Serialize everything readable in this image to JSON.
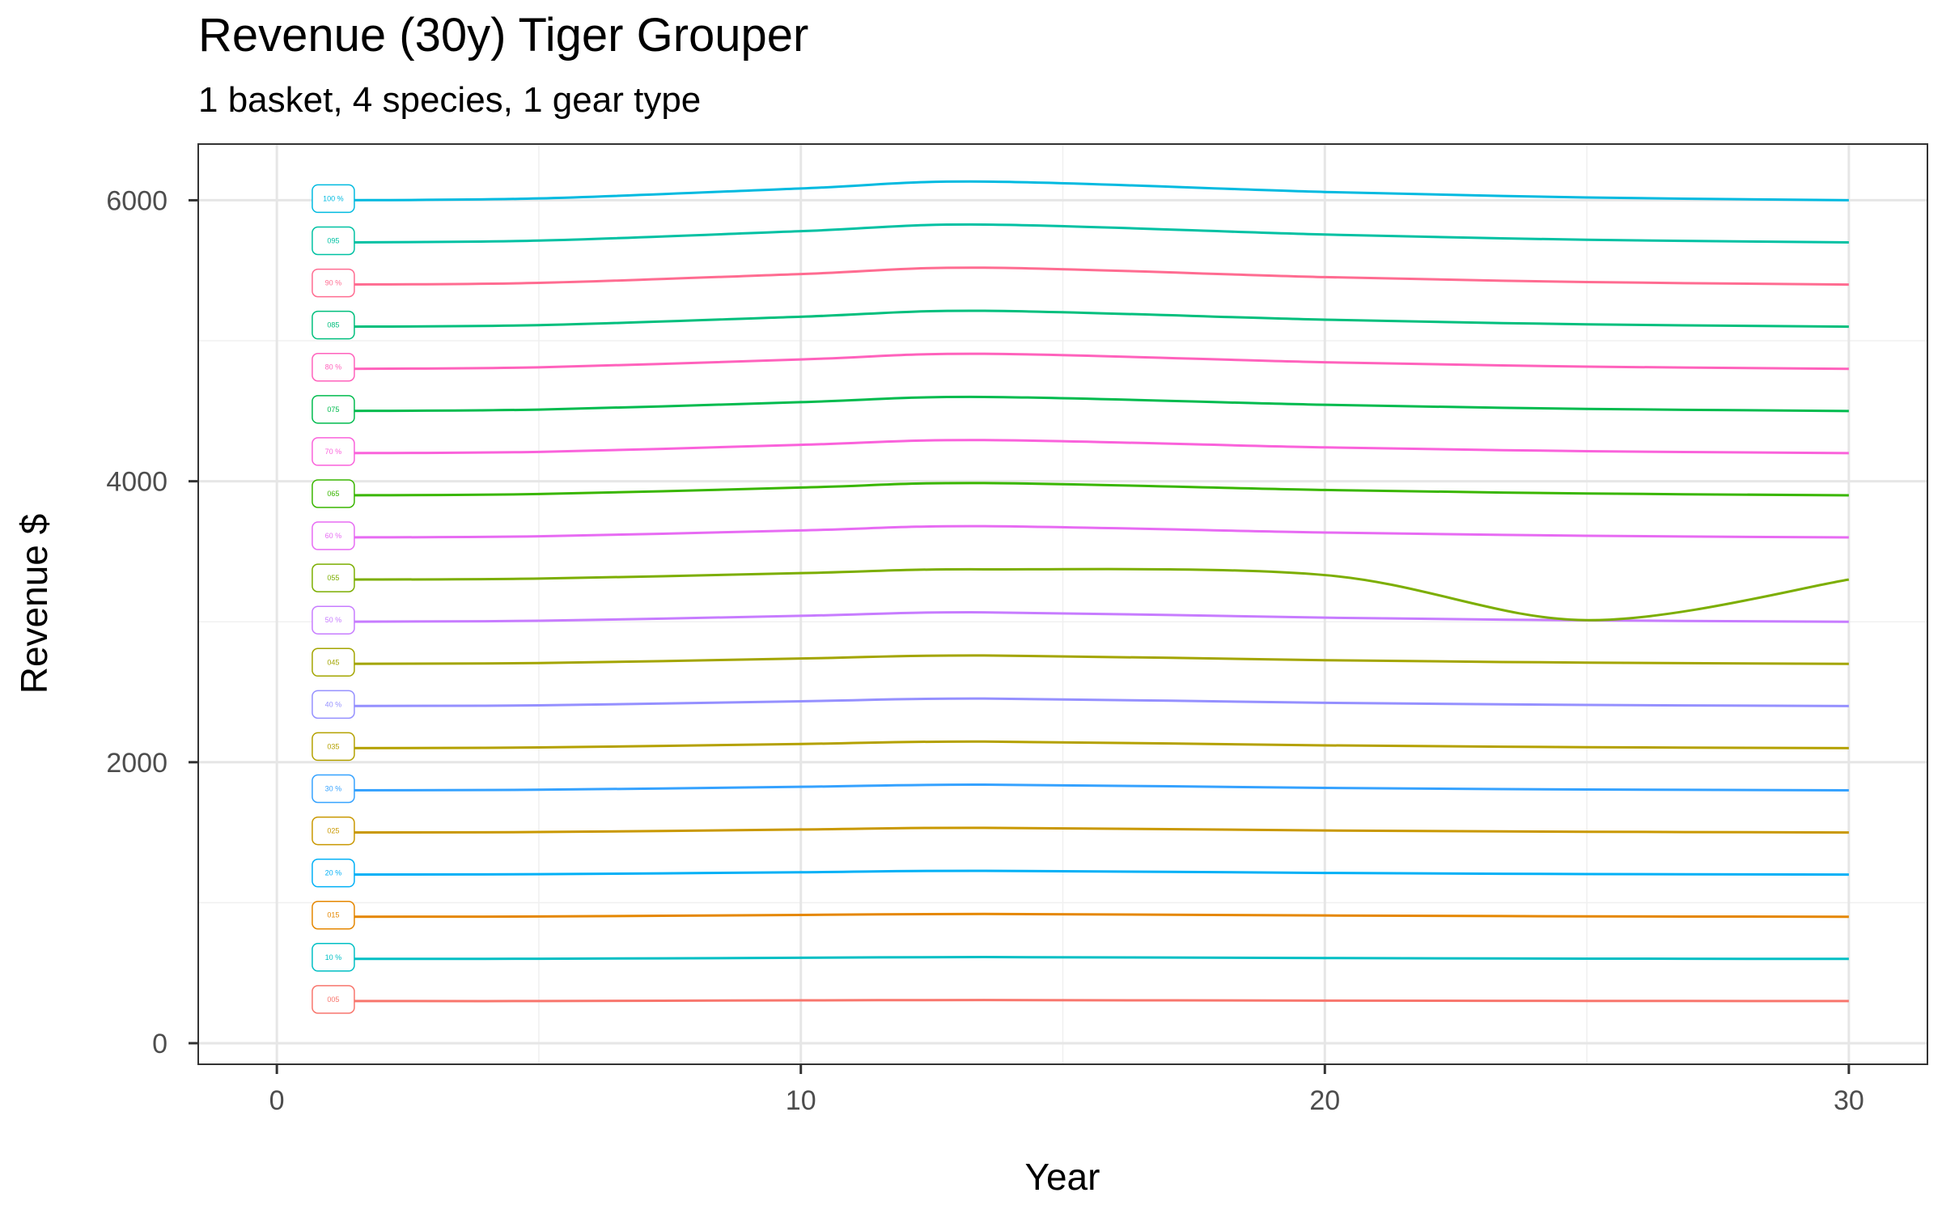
{
  "chart_data": {
    "type": "line",
    "title": "Revenue (30y) Tiger Grouper",
    "subtitle": "1 basket, 4 species, 1 gear type",
    "xlabel": "Year",
    "ylabel": "Revenue $",
    "xlim": [
      -1.5,
      31.5
    ],
    "ylim": [
      -150,
      6400
    ],
    "x_ticks": [
      0,
      10,
      20,
      30
    ],
    "y_ticks": [
      0,
      2000,
      4000,
      6000
    ],
    "x_minor": [
      5,
      15,
      25
    ],
    "y_minor": [
      1000,
      3000,
      5000
    ],
    "grid": true,
    "legend": "none",
    "x": [
      1,
      5,
      10,
      13.5,
      20,
      25,
      30
    ],
    "series": [
      {
        "name": "005",
        "label": "005",
        "color": "#F8766D",
        "values": [
          300,
          300,
          305,
          307,
          303,
          301,
          300
        ]
      },
      {
        "name": "10 %",
        "label": "10 %",
        "color": "#00BFC4",
        "values": [
          600,
          601,
          608,
          613,
          606,
          602,
          600
        ]
      },
      {
        "name": "015",
        "label": "015",
        "color": "#E58700",
        "values": [
          900,
          902,
          913,
          920,
          909,
          903,
          900
        ]
      },
      {
        "name": "20 %",
        "label": "20 %",
        "color": "#00B0F6",
        "values": [
          1200,
          1203,
          1217,
          1227,
          1212,
          1204,
          1200
        ]
      },
      {
        "name": "025",
        "label": "025",
        "color": "#C99800",
        "values": [
          1500,
          1503,
          1521,
          1533,
          1514,
          1505,
          1500
        ]
      },
      {
        "name": "30 %",
        "label": "30 %",
        "color": "#35A2FF",
        "values": [
          1800,
          1804,
          1825,
          1840,
          1817,
          1806,
          1800
        ]
      },
      {
        "name": "035",
        "label": "035",
        "color": "#B4A100",
        "values": [
          2100,
          2105,
          2130,
          2147,
          2120,
          2107,
          2100
        ]
      },
      {
        "name": "40 %",
        "label": "40 %",
        "color": "#9590FF",
        "values": [
          2400,
          2405,
          2434,
          2453,
          2423,
          2408,
          2400
        ]
      },
      {
        "name": "045",
        "label": "045",
        "color": "#A3A500",
        "values": [
          2700,
          2706,
          2738,
          2760,
          2726,
          2709,
          2700
        ]
      },
      {
        "name": "50 %",
        "label": "50 %",
        "color": "#C77CFF",
        "values": [
          3000,
          3007,
          3042,
          3067,
          3029,
          3010,
          3000
        ]
      },
      {
        "name": "055",
        "label": "055",
        "color": "#7CAE00",
        "values": [
          3300,
          3307,
          3346,
          3373,
          3332,
          3011,
          3300
        ]
      },
      {
        "name": "60 %",
        "label": "60 %",
        "color": "#E76BF3",
        "values": [
          3600,
          3608,
          3650,
          3680,
          3635,
          3612,
          3600
        ]
      },
      {
        "name": "065",
        "label": "065",
        "color": "#39B600",
        "values": [
          3900,
          3909,
          3955,
          3987,
          3938,
          3913,
          3900
        ]
      },
      {
        "name": "70 %",
        "label": "70 %",
        "color": "#FA62DB",
        "values": [
          4200,
          4209,
          4259,
          4293,
          4241,
          4214,
          4200
        ]
      },
      {
        "name": "075",
        "label": "075",
        "color": "#00BB4E",
        "values": [
          4500,
          4510,
          4563,
          4600,
          4544,
          4515,
          4500
        ]
      },
      {
        "name": "80 %",
        "label": "80 %",
        "color": "#FF62BC",
        "values": [
          4800,
          4811,
          4867,
          4907,
          4847,
          4816,
          4800
        ]
      },
      {
        "name": "085",
        "label": "085",
        "color": "#00BF7D",
        "values": [
          5100,
          5111,
          5171,
          5213,
          5150,
          5117,
          5100
        ]
      },
      {
        "name": "90 %",
        "label": "90 %",
        "color": "#FF6C91",
        "values": [
          5400,
          5412,
          5475,
          5520,
          5453,
          5418,
          5400
        ]
      },
      {
        "name": "095",
        "label": "095",
        "color": "#00C1A3",
        "values": [
          5700,
          5713,
          5780,
          5827,
          5756,
          5719,
          5700
        ]
      },
      {
        "name": "100 %",
        "label": "100 %",
        "color": "#00BAE0",
        "values": [
          6000,
          6013,
          6084,
          6133,
          6059,
          6020,
          6000
        ]
      }
    ]
  }
}
